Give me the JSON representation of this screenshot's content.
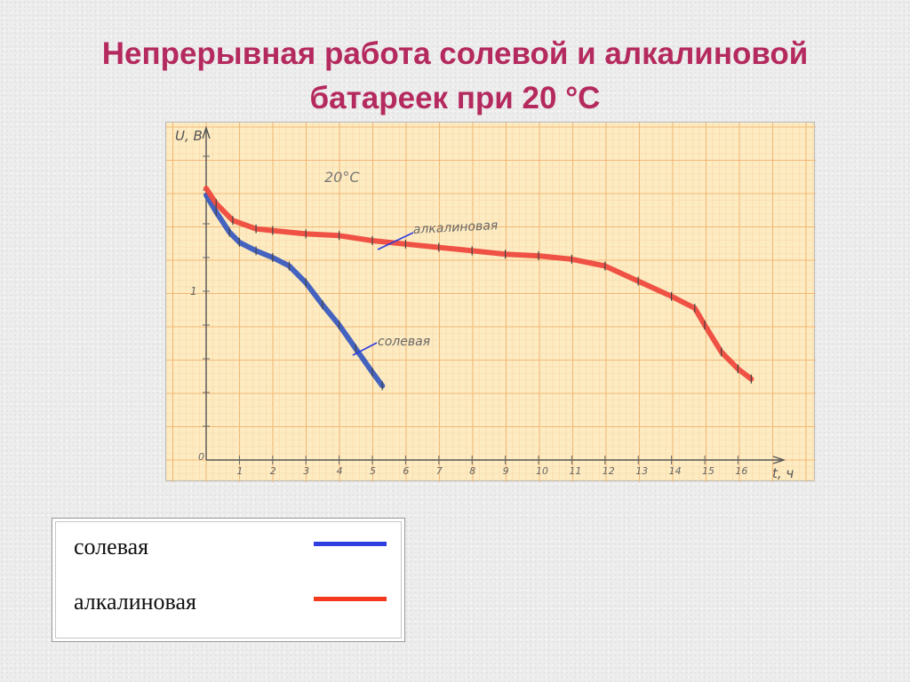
{
  "page": {
    "title_line1": "Непрерывная работа солевой и алкалиновой",
    "title_line2": "батареек при 20 °С"
  },
  "chart_data": {
    "type": "line",
    "annotation": "20°С",
    "xlabel": "t, ч",
    "ylabel": "U, В",
    "xlim": [
      0,
      17.5
    ],
    "ylim": [
      0,
      1.95
    ],
    "x_ticks": [
      0,
      1,
      2,
      3,
      4,
      5,
      6,
      7,
      8,
      9,
      10,
      11,
      12,
      13,
      14,
      15,
      16
    ],
    "y_ticks": [
      {
        "value": 1,
        "label": "1"
      }
    ],
    "grid": true,
    "series": [
      {
        "name": "солевая",
        "color": "#3a5bbf",
        "x": [
          0,
          0.3,
          0.7,
          1.0,
          1.5,
          2.0,
          2.5,
          3.0,
          3.5,
          4.0,
          4.5,
          5.0,
          5.3
        ],
        "y": [
          1.57,
          1.47,
          1.35,
          1.29,
          1.24,
          1.2,
          1.15,
          1.05,
          0.92,
          0.8,
          0.66,
          0.52,
          0.44
        ]
      },
      {
        "name": "алкалиновая",
        "color": "#ee4a3e",
        "x": [
          0,
          0.3,
          0.8,
          1.5,
          2.0,
          3.0,
          4.0,
          5.0,
          6.0,
          7.0,
          8.0,
          9.0,
          10.0,
          11.0,
          12.0,
          13.0,
          14.0,
          14.7,
          15.0,
          15.5,
          16.0,
          16.4
        ],
        "y": [
          1.61,
          1.52,
          1.42,
          1.37,
          1.36,
          1.34,
          1.33,
          1.3,
          1.28,
          1.26,
          1.24,
          1.22,
          1.21,
          1.19,
          1.15,
          1.06,
          0.97,
          0.9,
          0.8,
          0.64,
          0.54,
          0.48
        ]
      }
    ],
    "inline_labels": [
      {
        "text": "алкалиновая",
        "series": 1
      },
      {
        "text": "солевая",
        "series": 0
      }
    ]
  },
  "legend": {
    "items": [
      {
        "label": "солевая",
        "color": "#2f3ee0"
      },
      {
        "label": "алкалиновая",
        "color": "#f4391f"
      }
    ]
  }
}
